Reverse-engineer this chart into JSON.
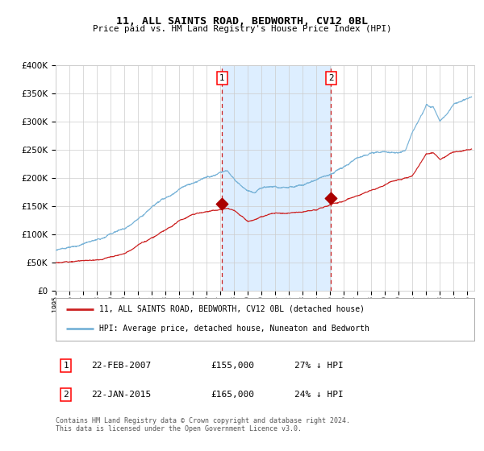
{
  "title": "11, ALL SAINTS ROAD, BEDWORTH, CV12 0BL",
  "subtitle": "Price paid vs. HM Land Registry's House Price Index (HPI)",
  "legend_line1": "11, ALL SAINTS ROAD, BEDWORTH, CV12 0BL (detached house)",
  "legend_line2": "HPI: Average price, detached house, Nuneaton and Bedworth",
  "annotation1_date": "22-FEB-2007",
  "annotation1_price": "£155,000",
  "annotation1_hpi": "27% ↓ HPI",
  "annotation2_date": "22-JAN-2015",
  "annotation2_price": "£165,000",
  "annotation2_hpi": "24% ↓ HPI",
  "sale1_year": 2007.13,
  "sale1_price": 155000,
  "sale2_year": 2015.06,
  "sale2_price": 165000,
  "footer": "Contains HM Land Registry data © Crown copyright and database right 2024.\nThis data is licensed under the Open Government Licence v3.0.",
  "hpi_color": "#7ab4d8",
  "price_color": "#cc2222",
  "marker_color": "#aa0000",
  "vline_color": "#cc2222",
  "shade_color": "#ddeeff",
  "grid_color": "#cccccc",
  "bg_color": "#ffffff",
  "ylim": [
    0,
    400000
  ],
  "xlim_start": 1995,
  "xlim_end": 2025.5
}
